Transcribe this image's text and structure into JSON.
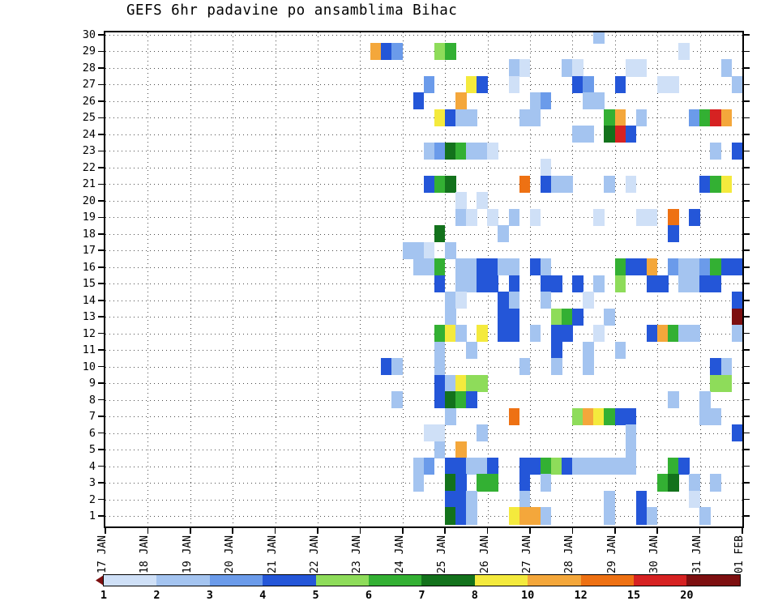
{
  "chart_data": {
    "type": "heatmap",
    "title": "GEFS 6hr padavine po ansamblima Bihac",
    "x_tick_labels": [
      "17 JAN",
      "18 JAN",
      "19 JAN",
      "20 JAN",
      "21 JAN",
      "22 JAN",
      "23 JAN",
      "24 JAN",
      "25 JAN",
      "26 JAN",
      "27 JAN",
      "28 JAN",
      "29 JAN",
      "30 JAN",
      "31 JAN",
      "01 FEB"
    ],
    "y_tick_labels": [
      "30",
      "29",
      "28",
      "27",
      "26",
      "25",
      "24",
      "23",
      "22",
      "21",
      "20",
      "19",
      "18",
      "17",
      "16",
      "15",
      "14",
      "13",
      "12",
      "11",
      "10",
      "9",
      "8",
      "7",
      "6",
      "5",
      "4",
      "3",
      "2",
      "1"
    ],
    "quarters_per_day": 4,
    "grid": "dotted",
    "colorbar": {
      "labels": [
        "1",
        "2",
        "3",
        "4",
        "5",
        "6",
        "7",
        "8",
        "10",
        "12",
        "15",
        "20"
      ],
      "colors": [
        "#cfe0f7",
        "#a4c4f0",
        "#6b9bea",
        "#2456d8",
        "#8edc5a",
        "#33b033",
        "#13721c",
        "#f4ea3d",
        "#f4a73b",
        "#ee7113",
        "#d62222",
        "#7d0f10"
      ],
      "arrow_color": "#7d0f10"
    },
    "cells": [
      [
        30,
        46,
        2
      ],
      [
        29,
        25,
        9
      ],
      [
        29,
        26,
        4
      ],
      [
        29,
        27,
        3
      ],
      [
        29,
        31,
        5
      ],
      [
        29,
        32,
        6
      ],
      [
        29,
        54,
        1
      ],
      [
        28,
        38,
        2
      ],
      [
        28,
        39,
        1
      ],
      [
        28,
        43,
        2
      ],
      [
        28,
        44,
        1
      ],
      [
        28,
        49,
        1
      ],
      [
        28,
        50,
        1
      ],
      [
        28,
        58,
        2
      ],
      [
        27,
        30,
        3
      ],
      [
        27,
        34,
        8
      ],
      [
        27,
        35,
        4
      ],
      [
        27,
        38,
        1
      ],
      [
        27,
        44,
        4
      ],
      [
        27,
        45,
        3
      ],
      [
        27,
        48,
        4
      ],
      [
        27,
        52,
        1
      ],
      [
        27,
        53,
        1
      ],
      [
        27,
        59,
        2
      ],
      [
        26,
        29,
        4
      ],
      [
        26,
        33,
        9
      ],
      [
        26,
        40,
        2
      ],
      [
        26,
        41,
        3
      ],
      [
        26,
        45,
        2
      ],
      [
        26,
        46,
        2
      ],
      [
        25,
        31,
        8
      ],
      [
        25,
        32,
        4
      ],
      [
        25,
        33,
        2
      ],
      [
        25,
        34,
        2
      ],
      [
        25,
        39,
        2
      ],
      [
        25,
        40,
        2
      ],
      [
        25,
        47,
        6
      ],
      [
        25,
        48,
        9
      ],
      [
        25,
        50,
        2
      ],
      [
        25,
        55,
        3
      ],
      [
        25,
        56,
        6
      ],
      [
        25,
        57,
        11
      ],
      [
        25,
        58,
        9
      ],
      [
        24,
        44,
        2
      ],
      [
        24,
        45,
        2
      ],
      [
        24,
        47,
        7
      ],
      [
        24,
        48,
        11
      ],
      [
        24,
        49,
        4
      ],
      [
        23,
        30,
        2
      ],
      [
        23,
        31,
        3
      ],
      [
        23,
        32,
        7
      ],
      [
        23,
        33,
        6
      ],
      [
        23,
        34,
        2
      ],
      [
        23,
        35,
        2
      ],
      [
        23,
        36,
        1
      ],
      [
        23,
        57,
        2
      ],
      [
        23,
        59,
        4
      ],
      [
        22,
        41,
        1
      ],
      [
        21,
        30,
        4
      ],
      [
        21,
        31,
        6
      ],
      [
        21,
        32,
        7
      ],
      [
        21,
        39,
        10
      ],
      [
        21,
        41,
        4
      ],
      [
        21,
        42,
        2
      ],
      [
        21,
        43,
        2
      ],
      [
        21,
        47,
        2
      ],
      [
        21,
        49,
        1
      ],
      [
        21,
        56,
        4
      ],
      [
        21,
        57,
        6
      ],
      [
        21,
        58,
        8
      ],
      [
        20,
        33,
        1
      ],
      [
        20,
        35,
        1
      ],
      [
        19,
        33,
        2
      ],
      [
        19,
        34,
        1
      ],
      [
        19,
        36,
        1
      ],
      [
        19,
        38,
        2
      ],
      [
        19,
        40,
        1
      ],
      [
        19,
        46,
        1
      ],
      [
        19,
        50,
        1
      ],
      [
        19,
        51,
        1
      ],
      [
        19,
        53,
        10
      ],
      [
        19,
        55,
        4
      ],
      [
        18,
        31,
        7
      ],
      [
        18,
        37,
        2
      ],
      [
        18,
        53,
        4
      ],
      [
        17,
        28,
        2
      ],
      [
        17,
        29,
        2
      ],
      [
        17,
        30,
        1
      ],
      [
        17,
        32,
        2
      ],
      [
        16,
        29,
        2
      ],
      [
        16,
        30,
        2
      ],
      [
        16,
        31,
        6
      ],
      [
        16,
        33,
        2
      ],
      [
        16,
        34,
        2
      ],
      [
        16,
        35,
        4
      ],
      [
        16,
        36,
        4
      ],
      [
        16,
        37,
        2
      ],
      [
        16,
        38,
        2
      ],
      [
        16,
        40,
        4
      ],
      [
        16,
        41,
        2
      ],
      [
        16,
        48,
        6
      ],
      [
        16,
        49,
        4
      ],
      [
        16,
        50,
        4
      ],
      [
        16,
        51,
        9
      ],
      [
        16,
        53,
        3
      ],
      [
        16,
        54,
        2
      ],
      [
        16,
        55,
        2
      ],
      [
        16,
        56,
        3
      ],
      [
        16,
        57,
        6
      ],
      [
        16,
        58,
        4
      ],
      [
        16,
        59,
        4
      ],
      [
        15,
        31,
        4
      ],
      [
        15,
        33,
        2
      ],
      [
        15,
        34,
        2
      ],
      [
        15,
        35,
        4
      ],
      [
        15,
        36,
        4
      ],
      [
        15,
        38,
        4
      ],
      [
        15,
        41,
        4
      ],
      [
        15,
        42,
        4
      ],
      [
        15,
        44,
        4
      ],
      [
        15,
        46,
        2
      ],
      [
        15,
        48,
        5
      ],
      [
        15,
        51,
        4
      ],
      [
        15,
        52,
        4
      ],
      [
        15,
        54,
        2
      ],
      [
        15,
        55,
        2
      ],
      [
        15,
        56,
        4
      ],
      [
        15,
        57,
        4
      ],
      [
        14,
        32,
        2
      ],
      [
        14,
        33,
        1
      ],
      [
        14,
        37,
        4
      ],
      [
        14,
        38,
        2
      ],
      [
        14,
        41,
        2
      ],
      [
        14,
        45,
        1
      ],
      [
        14,
        59,
        4
      ],
      [
        13,
        32,
        2
      ],
      [
        13,
        37,
        4
      ],
      [
        13,
        38,
        4
      ],
      [
        13,
        42,
        5
      ],
      [
        13,
        43,
        6
      ],
      [
        13,
        44,
        4
      ],
      [
        13,
        47,
        2
      ],
      [
        13,
        59,
        12
      ],
      [
        12,
        31,
        6
      ],
      [
        12,
        32,
        8
      ],
      [
        12,
        33,
        2
      ],
      [
        12,
        35,
        8
      ],
      [
        12,
        37,
        4
      ],
      [
        12,
        38,
        4
      ],
      [
        12,
        40,
        2
      ],
      [
        12,
        42,
        4
      ],
      [
        12,
        43,
        4
      ],
      [
        12,
        46,
        1
      ],
      [
        12,
        51,
        4
      ],
      [
        12,
        52,
        9
      ],
      [
        12,
        53,
        6
      ],
      [
        12,
        54,
        2
      ],
      [
        12,
        55,
        2
      ],
      [
        12,
        59,
        2
      ],
      [
        11,
        31,
        2
      ],
      [
        11,
        34,
        2
      ],
      [
        11,
        42,
        4
      ],
      [
        11,
        45,
        2
      ],
      [
        11,
        48,
        2
      ],
      [
        10,
        26,
        4
      ],
      [
        10,
        27,
        2
      ],
      [
        10,
        31,
        2
      ],
      [
        10,
        39,
        2
      ],
      [
        10,
        42,
        2
      ],
      [
        10,
        45,
        2
      ],
      [
        10,
        57,
        4
      ],
      [
        10,
        58,
        2
      ],
      [
        9,
        31,
        4
      ],
      [
        9,
        32,
        2
      ],
      [
        9,
        33,
        8
      ],
      [
        9,
        34,
        5
      ],
      [
        9,
        35,
        5
      ],
      [
        9,
        57,
        5
      ],
      [
        9,
        58,
        5
      ],
      [
        8,
        27,
        2
      ],
      [
        8,
        31,
        4
      ],
      [
        8,
        32,
        7
      ],
      [
        8,
        33,
        6
      ],
      [
        8,
        34,
        4
      ],
      [
        8,
        53,
        2
      ],
      [
        8,
        56,
        2
      ],
      [
        7,
        32,
        2
      ],
      [
        7,
        38,
        10
      ],
      [
        7,
        44,
        5
      ],
      [
        7,
        45,
        9
      ],
      [
        7,
        46,
        8
      ],
      [
        7,
        47,
        6
      ],
      [
        7,
        48,
        4
      ],
      [
        7,
        49,
        4
      ],
      [
        7,
        56,
        2
      ],
      [
        7,
        57,
        2
      ],
      [
        6,
        30,
        1
      ],
      [
        6,
        31,
        1
      ],
      [
        6,
        35,
        2
      ],
      [
        6,
        49,
        2
      ],
      [
        6,
        59,
        4
      ],
      [
        5,
        31,
        2
      ],
      [
        5,
        33,
        9
      ],
      [
        5,
        49,
        2
      ],
      [
        4,
        29,
        2
      ],
      [
        4,
        30,
        3
      ],
      [
        4,
        32,
        4
      ],
      [
        4,
        33,
        4
      ],
      [
        4,
        34,
        2
      ],
      [
        4,
        35,
        2
      ],
      [
        4,
        36,
        4
      ],
      [
        4,
        39,
        4
      ],
      [
        4,
        40,
        4
      ],
      [
        4,
        41,
        6
      ],
      [
        4,
        42,
        5
      ],
      [
        4,
        43,
        4
      ],
      [
        4,
        44,
        2
      ],
      [
        4,
        45,
        2
      ],
      [
        4,
        46,
        2
      ],
      [
        4,
        47,
        2
      ],
      [
        4,
        48,
        2
      ],
      [
        4,
        49,
        2
      ],
      [
        4,
        53,
        6
      ],
      [
        4,
        54,
        4
      ],
      [
        3,
        29,
        2
      ],
      [
        3,
        32,
        7
      ],
      [
        3,
        33,
        4
      ],
      [
        3,
        35,
        6
      ],
      [
        3,
        36,
        6
      ],
      [
        3,
        39,
        4
      ],
      [
        3,
        41,
        2
      ],
      [
        3,
        52,
        6
      ],
      [
        3,
        53,
        7
      ],
      [
        3,
        55,
        2
      ],
      [
        3,
        57,
        2
      ],
      [
        2,
        32,
        4
      ],
      [
        2,
        33,
        4
      ],
      [
        2,
        34,
        2
      ],
      [
        2,
        39,
        2
      ],
      [
        2,
        47,
        2
      ],
      [
        2,
        50,
        4
      ],
      [
        2,
        55,
        1
      ],
      [
        1,
        32,
        7
      ],
      [
        1,
        33,
        4
      ],
      [
        1,
        34,
        2
      ],
      [
        1,
        38,
        8
      ],
      [
        1,
        39,
        9
      ],
      [
        1,
        40,
        9
      ],
      [
        1,
        41,
        2
      ],
      [
        1,
        47,
        2
      ],
      [
        1,
        50,
        4
      ],
      [
        1,
        51,
        2
      ],
      [
        1,
        56,
        2
      ]
    ]
  }
}
